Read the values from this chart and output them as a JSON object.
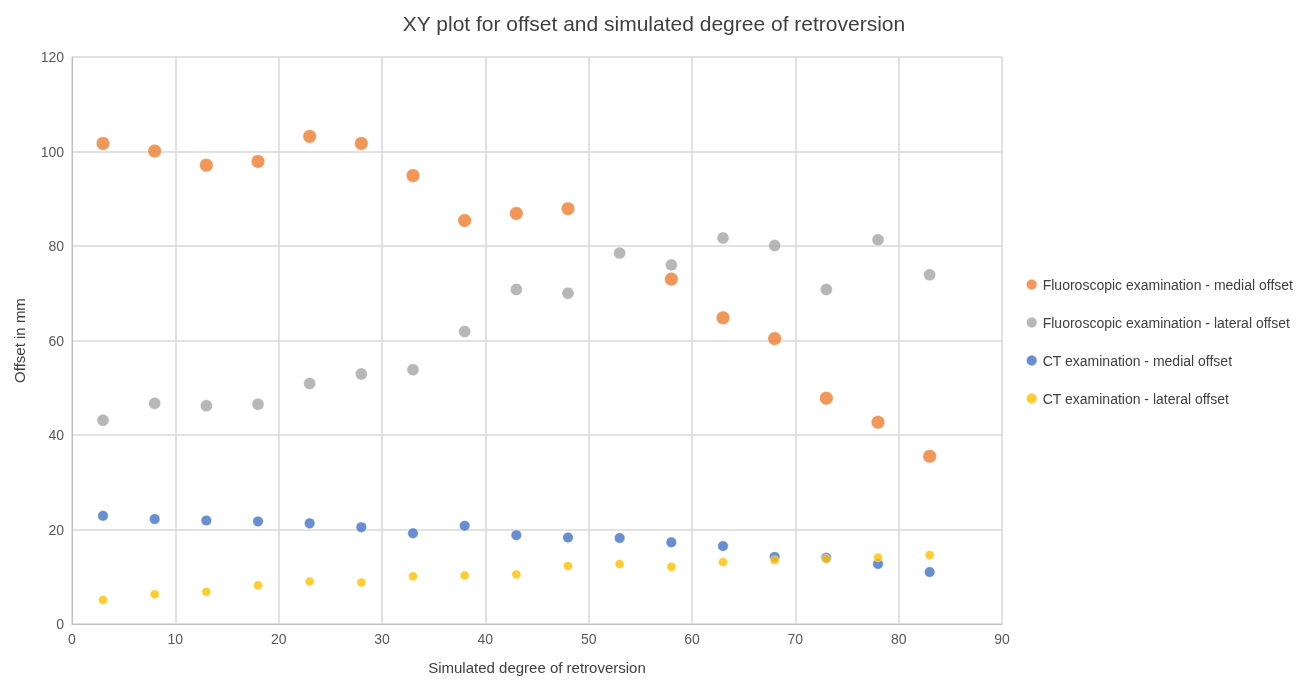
{
  "chart_data": {
    "type": "scatter",
    "title": "XY plot for offset and simulated degree of retroversion",
    "xlabel": "Simulated degree of retroversion",
    "ylabel": "Offset in mm",
    "x": [
      3,
      8,
      13,
      18,
      23,
      28,
      33,
      38,
      43,
      48,
      53,
      58,
      63,
      68,
      73,
      78,
      83
    ],
    "series": [
      {
        "name": "Fluoroscopic examination - medial offset",
        "color": "#ed7d31",
        "values": [
          101.7,
          100.1,
          97.1,
          97.9,
          103.2,
          101.7,
          94.9,
          85.4,
          86.9,
          87.9,
          null,
          73.0,
          64.8,
          60.4,
          47.8,
          42.7,
          35.5
        ]
      },
      {
        "name": "Fluoroscopic examination - lateral offset",
        "color": "#a5a5a5",
        "values": [
          43.1,
          46.7,
          46.2,
          46.5,
          50.9,
          52.9,
          53.8,
          61.9,
          70.8,
          70.0,
          78.5,
          76.0,
          81.7,
          80.1,
          70.8,
          81.3,
          73.9
        ]
      },
      {
        "name": "CT examination - medial offset",
        "color": "#4472c4",
        "values": [
          22.9,
          22.2,
          21.9,
          21.7,
          21.3,
          20.5,
          19.2,
          20.8,
          18.8,
          18.3,
          18.2,
          17.3,
          16.5,
          14.2,
          14.0,
          12.7,
          11.0
        ]
      },
      {
        "name": "CT examination - lateral offset",
        "color": "#ffc000",
        "values": [
          5.1,
          6.3,
          6.8,
          8.2,
          9.0,
          8.8,
          10.1,
          10.3,
          10.5,
          12.3,
          12.7,
          12.1,
          13.1,
          13.5,
          13.8,
          14.1,
          14.6
        ]
      }
    ],
    "xlim": [
      0,
      90
    ],
    "xticks": [
      0,
      10,
      20,
      30,
      40,
      50,
      60,
      70,
      80,
      90
    ],
    "ylim": [
      0,
      120
    ],
    "yticks": [
      0,
      20,
      40,
      60,
      80,
      100,
      120
    ],
    "grid": true,
    "legend": "right",
    "marker": "circle"
  }
}
